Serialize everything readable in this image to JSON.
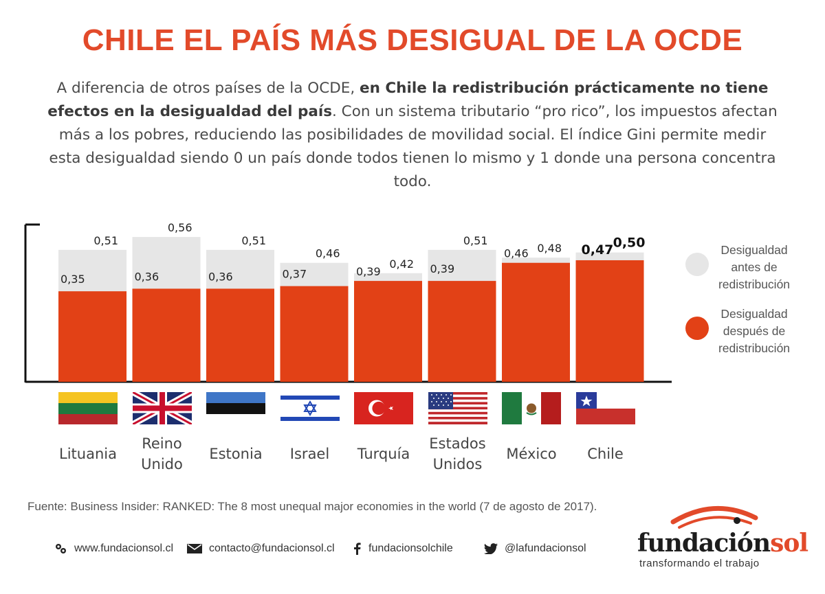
{
  "title": "CHILE EL PAÍS MÁS DESIGUAL DE LA OCDE",
  "intro": {
    "part1": "A diferencia de otros países de la OCDE, ",
    "bold1": "en Chile la redistribución prácticamente no tiene efectos en la desigualdad del país",
    "part2": ". Con un sistema tributario “pro rico”, los impuestos afectan más a los pobres, reduciendo las posibilidades de movilidad social. El índice Gini permite medir esta desigualdad siendo 0 un país donde todos tienen lo mismo y 1 donde una persona concentra todo."
  },
  "chart_data": {
    "type": "bar",
    "categories": [
      "Lituania",
      "Reino Unido",
      "Estonia",
      "Israel",
      "Turquía",
      "Estados Unidos",
      "México",
      "Chile"
    ],
    "category_lines": [
      [
        "Lituania"
      ],
      [
        "Reino",
        "Unido"
      ],
      [
        "Estonia"
      ],
      [
        "Israel"
      ],
      [
        "Turquía"
      ],
      [
        "Estados",
        "Unidos"
      ],
      [
        "México"
      ],
      [
        "Chile"
      ]
    ],
    "series": [
      {
        "name": "Desigualdad antes de redistribución",
        "color": "#e6e6e6",
        "values": [
          0.51,
          0.56,
          0.51,
          0.46,
          0.42,
          0.51,
          0.48,
          0.5
        ],
        "labels": [
          "0,51",
          "0,56",
          "0,51",
          "0,46",
          "0,42",
          "0,51",
          "0,48",
          "0,50"
        ]
      },
      {
        "name": "Desigualdad después de redistribución",
        "color": "#e24116",
        "values": [
          0.35,
          0.36,
          0.36,
          0.37,
          0.39,
          0.39,
          0.46,
          0.47
        ],
        "labels": [
          "0,35",
          "0,36",
          "0,36",
          "0,37",
          "0,39",
          "0,39",
          "0,46",
          "0,47"
        ]
      }
    ],
    "highlight": "Chile",
    "overlap": true,
    "grid": false,
    "legend_position": "right"
  },
  "legend": [
    {
      "lines": [
        "Desigualdad",
        "antes de",
        "redistribución"
      ],
      "color": "#e6e6e6"
    },
    {
      "lines": [
        "Desigualdad",
        "después de",
        "redistribución"
      ],
      "color": "#e24116"
    }
  ],
  "flags": [
    "lithuania-flag-icon",
    "uk-flag-icon",
    "estonia-flag-icon",
    "israel-flag-icon",
    "turkey-flag-icon",
    "usa-flag-icon",
    "mexico-flag-icon",
    "chile-flag-icon"
  ],
  "source": "Fuente: Business Insider: RANKED: The 8 most unequal major economies in the world (7 de agosto de 2017).",
  "contacts": {
    "web": "www.fundacionsol.cl",
    "email": "contacto@fundacionsol.cl",
    "facebook": "fundacionsolchile",
    "twitter": "@lafundacionsol"
  },
  "logo": {
    "brand_a": "fundación",
    "brand_b": "sol",
    "tagline": "transformando el trabajo"
  },
  "colors": {
    "accent": "#e24a2a",
    "before": "#e6e6e6",
    "after": "#e24116"
  }
}
